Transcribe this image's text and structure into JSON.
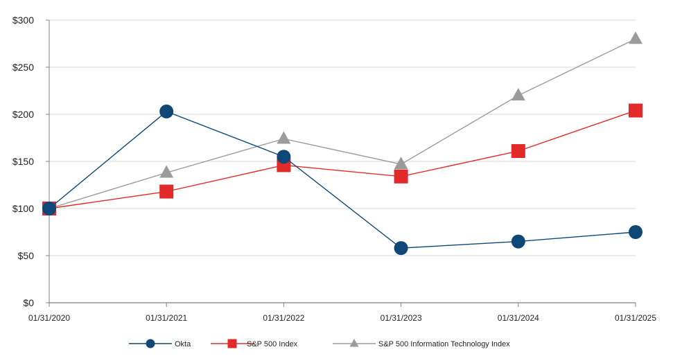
{
  "chart_data": {
    "type": "line",
    "title": "",
    "xlabel": "",
    "ylabel": "",
    "categories": [
      "01/31/2020",
      "01/31/2021",
      "01/31/2022",
      "01/31/2023",
      "01/31/2024",
      "01/31/2025"
    ],
    "ylim": [
      0,
      300
    ],
    "yticks": [
      0,
      50,
      100,
      150,
      200,
      250,
      300
    ],
    "ytick_labels": [
      "$0",
      "$50",
      "$100",
      "$150",
      "$200",
      "$250",
      "$300"
    ],
    "grid": true,
    "legend_position": "bottom-center",
    "series": [
      {
        "name": "Okta",
        "color": "#0f4777",
        "marker": "circle",
        "values": [
          100,
          203,
          155,
          58,
          65,
          75
        ]
      },
      {
        "name": "S&P 500 Index",
        "color": "#e32a2a",
        "marker": "square",
        "values": [
          100,
          118,
          146,
          134,
          161,
          204
        ]
      },
      {
        "name": "S&P 500 Information Technology Index",
        "color": "#9b9b9b",
        "marker": "triangle",
        "values": [
          100,
          138,
          174,
          147,
          220,
          280
        ]
      }
    ]
  }
}
